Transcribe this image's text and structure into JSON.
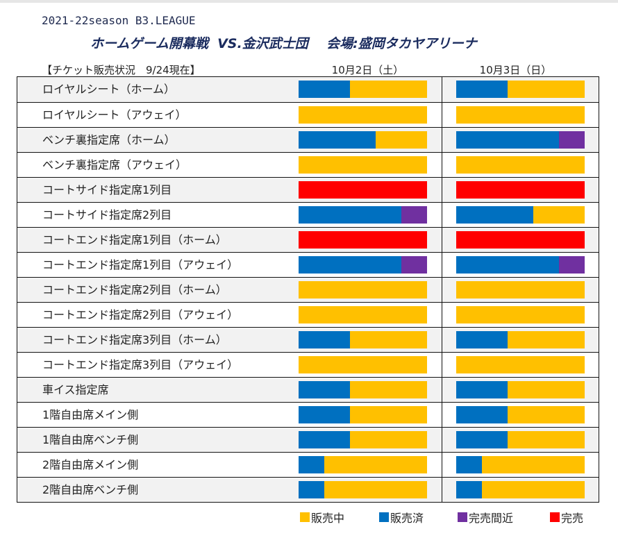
{
  "header": {
    "season": "2021-22season B3.LEAGUE",
    "headline": "ホームゲーム開幕戦  VS.金沢武士団    会場:盛岡タカヤアリーナ",
    "status_label": "【チケット販売状況　9/24現在】"
  },
  "colors": {
    "on_sale": "#ffc000",
    "sold": "#0070c0",
    "almost_sold_out": "#7030a0",
    "sold_out": "#ff0000"
  },
  "legend": [
    {
      "key": "on_sale",
      "label": "販売中"
    },
    {
      "key": "sold",
      "label": "販売済"
    },
    {
      "key": "almost_sold_out",
      "label": "完売間近"
    },
    {
      "key": "sold_out",
      "label": "完売"
    }
  ],
  "chart_data": {
    "type": "bar",
    "orientation": "horizontal-stacked",
    "title": "チケット販売状況 9/24現在",
    "unit": "percent",
    "dates": [
      "10月2日（土）",
      "10月3日（日）"
    ],
    "categories": [
      "ロイヤルシート（ホーム）",
      "ロイヤルシート（アウェイ）",
      "ベンチ裏指定席（ホーム）",
      "ベンチ裏指定席（アウェイ）",
      "コートサイド指定席1列目",
      "コートサイド指定席2列目",
      "コートエンド指定席1列目（ホーム）",
      "コートエンド指定席1列目（アウェイ）",
      "コートエンド指定席2列目（ホーム）",
      "コートエンド指定席2列目（アウェイ）",
      "コートエンド指定席3列目（ホーム）",
      "コートエンド指定席3列目（アウェイ）",
      "車イス指定席",
      "1階自由席メイン側",
      "1階自由席ベンチ側",
      "2階自由席メイン側",
      "2階自由席ベンチ側"
    ],
    "series_order": [
      "sold",
      "almost_sold_out",
      "on_sale",
      "sold_out"
    ],
    "values": [
      [
        {
          "sold": 40,
          "on_sale": 60
        },
        {
          "sold": 40,
          "on_sale": 60
        }
      ],
      [
        {
          "on_sale": 100
        },
        {
          "on_sale": 100
        }
      ],
      [
        {
          "sold": 60,
          "on_sale": 40
        },
        {
          "sold": 80,
          "almost_sold_out": 20
        }
      ],
      [
        {
          "on_sale": 100
        },
        {
          "on_sale": 100
        }
      ],
      [
        {
          "sold_out": 100
        },
        {
          "sold_out": 100
        }
      ],
      [
        {
          "sold": 80,
          "almost_sold_out": 20
        },
        {
          "sold": 60,
          "on_sale": 40
        }
      ],
      [
        {
          "sold_out": 100
        },
        {
          "sold_out": 100
        }
      ],
      [
        {
          "sold": 80,
          "almost_sold_out": 20
        },
        {
          "sold": 80,
          "almost_sold_out": 20
        }
      ],
      [
        {
          "on_sale": 100
        },
        {
          "on_sale": 100
        }
      ],
      [
        {
          "on_sale": 100
        },
        {
          "on_sale": 100
        }
      ],
      [
        {
          "sold": 40,
          "on_sale": 60
        },
        {
          "sold": 40,
          "on_sale": 60
        }
      ],
      [
        {
          "on_sale": 100
        },
        {
          "on_sale": 100
        }
      ],
      [
        {
          "sold": 40,
          "on_sale": 60
        },
        {
          "sold": 40,
          "on_sale": 60
        }
      ],
      [
        {
          "sold": 40,
          "on_sale": 60
        },
        {
          "sold": 40,
          "on_sale": 60
        }
      ],
      [
        {
          "sold": 40,
          "on_sale": 60
        },
        {
          "sold": 40,
          "on_sale": 60
        }
      ],
      [
        {
          "sold": 20,
          "on_sale": 80
        },
        {
          "sold": 20,
          "on_sale": 80
        }
      ],
      [
        {
          "sold": 20,
          "on_sale": 80
        },
        {
          "sold": 20,
          "on_sale": 80
        }
      ]
    ]
  }
}
